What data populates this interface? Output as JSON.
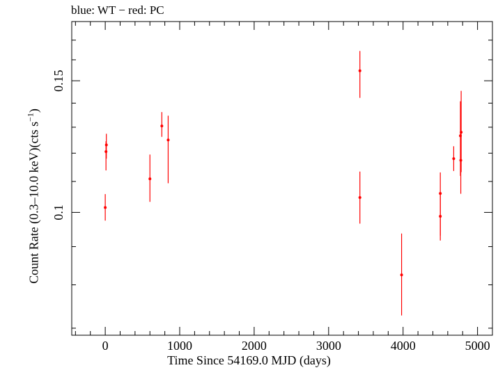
{
  "chart_data": {
    "type": "scatter",
    "title": "blue: WT − red: PC",
    "xlabel": "Time Since 54169.0 MJD (days)",
    "ylabel_main": "Count Rate (0.3–10.0 keV)(cts s",
    "ylabel_sup": "−1",
    "ylabel_tail": ")",
    "y_scale": "log",
    "xlim": [
      -450,
      5200
    ],
    "ylim": [
      0.0685,
      0.18
    ],
    "grid": false,
    "xticks_major": [
      0,
      1000,
      2000,
      3000,
      4000,
      5000
    ],
    "xtick_labels": [
      "0",
      "1000",
      "2000",
      "3000",
      "4000",
      "5000"
    ],
    "yticks_labeled": [
      0.1,
      0.15
    ],
    "ytick_labels": [
      "0.1",
      "0.15"
    ],
    "series": [
      {
        "color": "#ff0000",
        "points": [
          {
            "x": 0,
            "y": 0.1015,
            "ylo": 0.0975,
            "yhi": 0.1058
          },
          {
            "x": 10,
            "y": 0.1206,
            "ylo": 0.1138,
            "yhi": 0.1245
          },
          {
            "x": 15,
            "y": 0.1231,
            "ylo": 0.118,
            "yhi": 0.1274
          },
          {
            "x": 600,
            "y": 0.1109,
            "ylo": 0.1033,
            "yhi": 0.1195
          },
          {
            "x": 760,
            "y": 0.1305,
            "ylo": 0.1262,
            "yhi": 0.1362
          },
          {
            "x": 845,
            "y": 0.125,
            "ylo": 0.1094,
            "yhi": 0.1347
          },
          {
            "x": 3420,
            "y": 0.1547,
            "ylo": 0.1423,
            "yhi": 0.1644
          },
          {
            "x": 3420,
            "y": 0.1047,
            "ylo": 0.0966,
            "yhi": 0.1134
          },
          {
            "x": 3980,
            "y": 0.0825,
            "ylo": 0.0728,
            "yhi": 0.0937
          },
          {
            "x": 4500,
            "y": 0.0988,
            "ylo": 0.0917,
            "yhi": 0.106
          },
          {
            "x": 4500,
            "y": 0.106,
            "ylo": 0.0931,
            "yhi": 0.1131
          },
          {
            "x": 4680,
            "y": 0.118,
            "ylo": 0.1136,
            "yhi": 0.1226
          },
          {
            "x": 4770,
            "y": 0.1266,
            "ylo": 0.1119,
            "yhi": 0.1408
          },
          {
            "x": 4775,
            "y": 0.1174,
            "ylo": 0.1059,
            "yhi": 0.1328
          },
          {
            "x": 4780,
            "y": 0.128,
            "ylo": 0.1132,
            "yhi": 0.1454
          }
        ]
      }
    ]
  }
}
